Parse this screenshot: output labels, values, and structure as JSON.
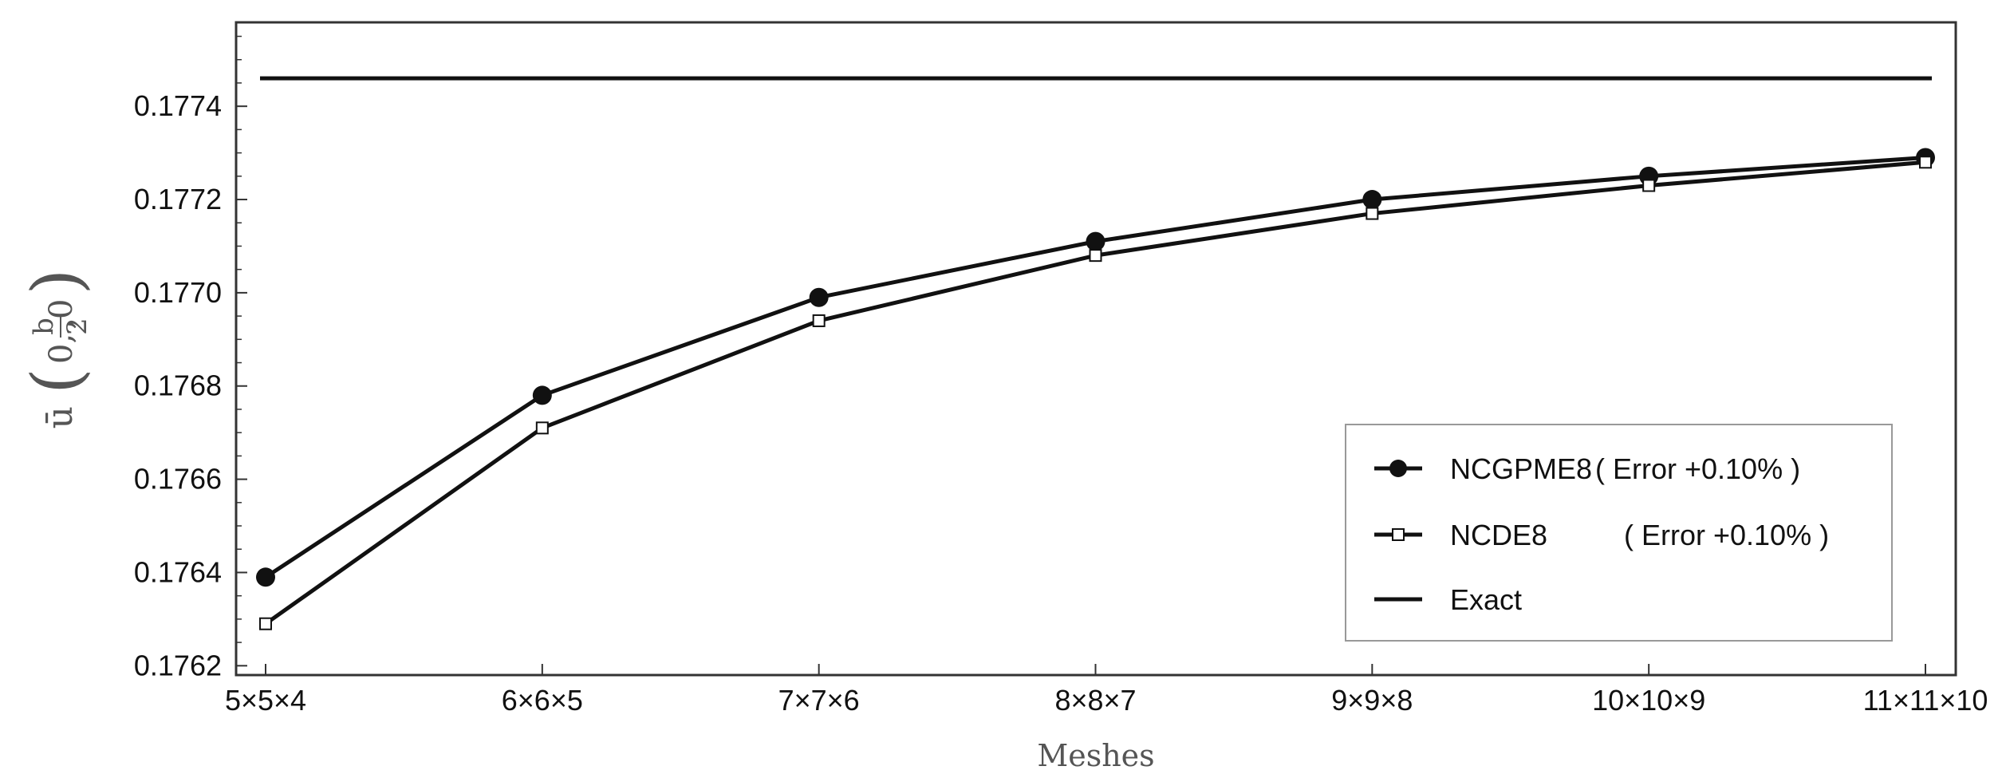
{
  "chart_data": {
    "type": "line",
    "xlabel": "Meshes",
    "ylabel": {
      "prefix": "ū",
      "open": "(",
      "arg1": "0,",
      "frac_num": "b",
      "frac_den": "2",
      "arg3": ",0",
      "close": ")"
    },
    "categories": [
      "5×5×4",
      "6×6×5",
      "7×7×6",
      "8×8×7",
      "9×9×8",
      "10×10×9",
      "11×11×10"
    ],
    "ylim": [
      0.17618,
      0.17758
    ],
    "yticks": [
      0.1762,
      0.1764,
      0.1766,
      0.1768,
      0.177,
      0.1772,
      0.1774
    ],
    "ytick_labels": [
      "0.1762",
      "0.1764",
      "0.1766",
      "0.1768",
      "0.1770",
      "0.1772",
      "0.1774"
    ],
    "grid": false,
    "legend_position": "bottom-right",
    "series": [
      {
        "name": "NCGPME8",
        "note": "( Error +0.10% )",
        "marker": "filled-circle",
        "values": [
          0.17639,
          0.17678,
          0.17699,
          0.17711,
          0.1772,
          0.17725,
          0.17729
        ]
      },
      {
        "name": "NCDE8",
        "note": "( Error +0.10% )",
        "marker": "open-square",
        "values": [
          0.17629,
          0.17671,
          0.17694,
          0.17708,
          0.17717,
          0.17723,
          0.17728
        ]
      },
      {
        "name": "Exact",
        "note": "",
        "marker": "none",
        "values": [
          0.17746,
          0.17746,
          0.17746,
          0.17746,
          0.17746,
          0.17746,
          0.17746
        ]
      }
    ],
    "colors": {
      "line": "#111111",
      "axis": "#333333",
      "legend_border": "#999999"
    }
  }
}
